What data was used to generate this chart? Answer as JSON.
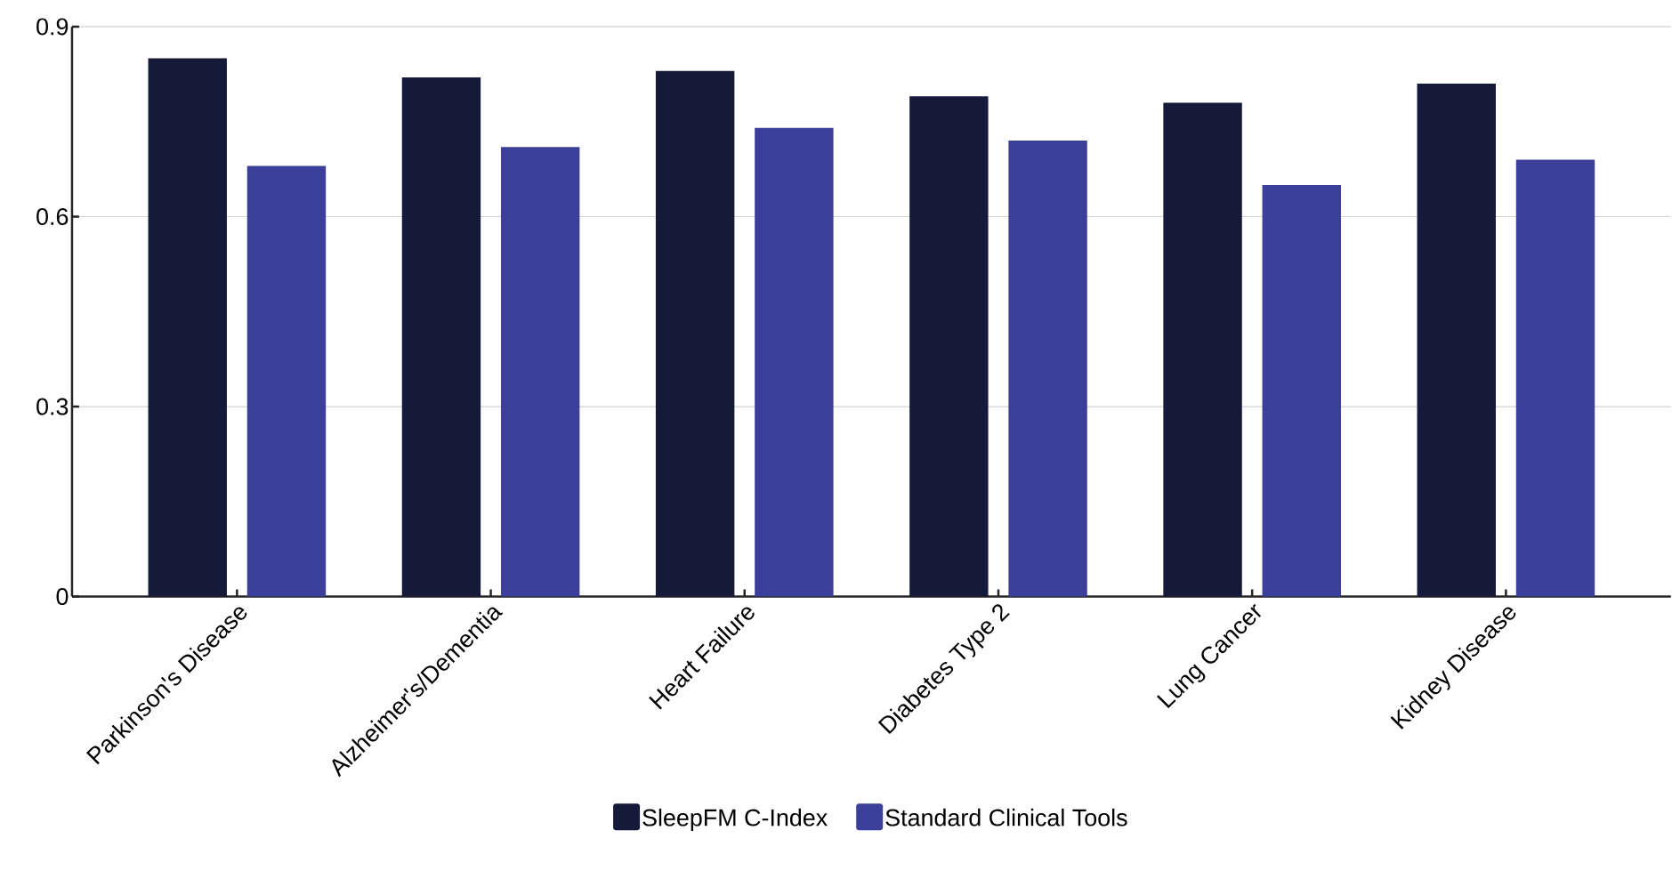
{
  "chart_data": {
    "type": "bar",
    "categories": [
      "Parkinson's Disease",
      "Alzheimer's/Dementia",
      "Heart Failure",
      "Diabetes Type 2",
      "Lung Cancer",
      "Kidney Disease"
    ],
    "series": [
      {
        "name": "SleepFM C-Index",
        "color": "#161a3a",
        "values": [
          0.85,
          0.82,
          0.83,
          0.79,
          0.78,
          0.81
        ]
      },
      {
        "name": "Standard Clinical Tools",
        "color": "#3b3f9a",
        "values": [
          0.68,
          0.71,
          0.74,
          0.72,
          0.65,
          0.69
        ]
      }
    ],
    "ylim": [
      0,
      0.9
    ],
    "yticks": [
      0,
      0.3,
      0.6,
      0.9
    ],
    "grid": "y",
    "legend": "bottom"
  }
}
